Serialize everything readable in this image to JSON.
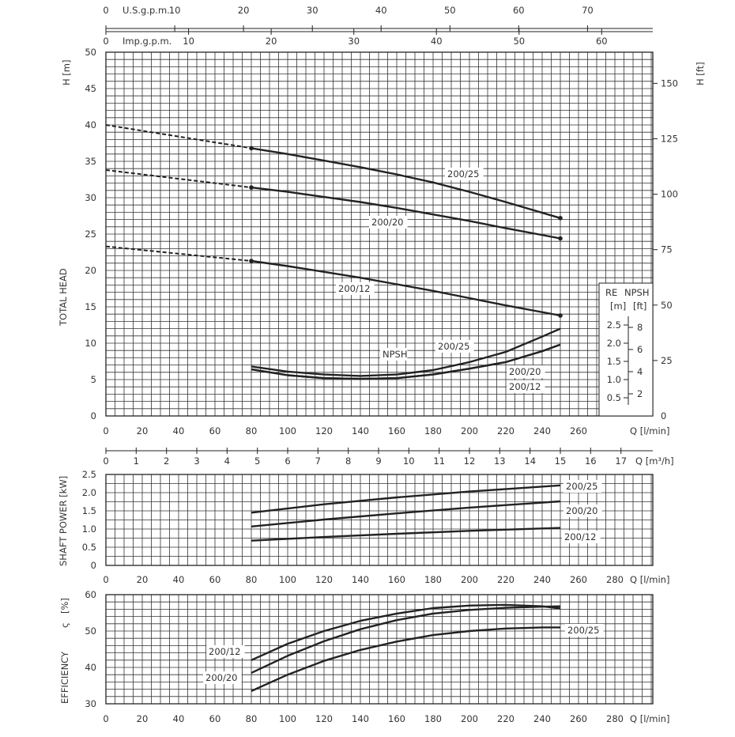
{
  "axes": {
    "usgpm": {
      "label": "U.S.g.p.m.",
      "ticks": [
        0,
        10,
        20,
        30,
        40,
        50,
        60,
        70
      ]
    },
    "impgpm": {
      "label": "Imp.g.p.m.",
      "ticks": [
        0,
        10,
        20,
        30,
        40,
        50,
        60
      ]
    },
    "flow_lmin": {
      "label": "Q  [l/min]",
      "ticks": [
        0,
        20,
        40,
        60,
        80,
        100,
        120,
        140,
        160,
        180,
        200,
        220,
        240,
        260
      ]
    },
    "flow_lmin_ext": {
      "label": "Q  [l/min]",
      "ticks": [
        0,
        20,
        40,
        60,
        80,
        100,
        120,
        140,
        160,
        180,
        200,
        220,
        240,
        260,
        280
      ]
    },
    "flow_m3h": {
      "label": "Q [m³/h]",
      "ticks": [
        0,
        1,
        2,
        3,
        4,
        5,
        6,
        7,
        8,
        9,
        10,
        11,
        12,
        13,
        14,
        15,
        16,
        17
      ]
    },
    "head_m": {
      "label": "H  [m]",
      "ticks": [
        0,
        5,
        10,
        15,
        20,
        25,
        30,
        35,
        40,
        45,
        50
      ]
    },
    "head_ft": {
      "label": "H  [ft]",
      "ticks": [
        0,
        25,
        50,
        75,
        100,
        125,
        150
      ]
    },
    "head_title": "TOTAL HEAD",
    "npsh_header": [
      "RE",
      "NPSH",
      "[m]",
      "[ft]"
    ],
    "npsh_m_ticks": [
      "0.5",
      "1.0",
      "1.5",
      "2.0",
      "2.5"
    ],
    "npsh_ft_ticks": [
      "2",
      "4",
      "6",
      "8"
    ],
    "power": {
      "label": "SHAFT POWER  [kW]",
      "ticks": [
        "0",
        "0.5",
        "1.0",
        "1.5",
        "2.0",
        "2.5"
      ]
    },
    "efficiency": {
      "label": "EFFICIENCY",
      "unit": "[%]",
      "ticks": [
        30,
        40,
        50,
        60
      ]
    }
  },
  "chart_data": [
    {
      "type": "line",
      "title": "TOTAL HEAD",
      "xlabel": "Q [l/min]",
      "ylabel": "H [m]",
      "xlim": [
        0,
        300
      ],
      "ylim": [
        0,
        50
      ],
      "grid": true,
      "series": [
        {
          "name": "200/25",
          "x": [
            0,
            80,
            100,
            120,
            140,
            160,
            180,
            200,
            220,
            250
          ],
          "y": [
            40,
            36.8,
            36.0,
            35.1,
            34.2,
            33.2,
            32.1,
            30.8,
            29.4,
            27.2
          ]
        },
        {
          "name": "200/20",
          "x": [
            0,
            80,
            100,
            120,
            140,
            160,
            180,
            200,
            220,
            250
          ],
          "y": [
            33.8,
            31.4,
            30.8,
            30.1,
            29.4,
            28.6,
            27.7,
            26.8,
            25.8,
            24.4
          ]
        },
        {
          "name": "200/12",
          "x": [
            0,
            80,
            100,
            120,
            140,
            160,
            180,
            200,
            220,
            250
          ],
          "y": [
            23.3,
            21.3,
            20.6,
            19.8,
            19.0,
            18.1,
            17.2,
            16.2,
            15.2,
            13.8
          ]
        }
      ],
      "npsh": [
        {
          "name": "200/25",
          "x": [
            80,
            100,
            120,
            140,
            160,
            180,
            200,
            220,
            240,
            250
          ],
          "y": [
            6.8,
            6.1,
            5.7,
            5.5,
            5.7,
            6.3,
            7.4,
            8.8,
            10.9,
            12.0
          ]
        },
        {
          "name": "200/20",
          "x": [
            80,
            100,
            120,
            140,
            160,
            180,
            200,
            220,
            240,
            250
          ],
          "y": [
            6.4,
            5.6,
            5.2,
            5.1,
            5.2,
            5.7,
            6.5,
            7.4,
            8.9,
            9.8
          ]
        },
        {
          "name": "200/12",
          "x": [
            80,
            100,
            120,
            140,
            160,
            180,
            200,
            220,
            240,
            250
          ],
          "y": [
            6.4,
            5.6,
            5.2,
            5.1,
            5.2,
            5.7,
            6.5,
            7.4,
            8.9,
            9.8
          ]
        }
      ],
      "npsh_label": "NPSH",
      "labels": {
        "h25": "200/25",
        "h20": "200/20",
        "h12": "200/12",
        "n25": "200/25",
        "n20": "200/20",
        "n12": "200/12"
      }
    },
    {
      "type": "line",
      "title": "SHAFT POWER",
      "xlabel": "Q [l/min]",
      "ylabel": "SHAFT POWER [kW]",
      "xlim": [
        0,
        300
      ],
      "ylim": [
        0,
        2.5
      ],
      "grid": true,
      "series": [
        {
          "name": "200/25",
          "x": [
            80,
            120,
            160,
            200,
            250
          ],
          "y": [
            1.45,
            1.68,
            1.87,
            2.03,
            2.2
          ]
        },
        {
          "name": "200/20",
          "x": [
            80,
            120,
            160,
            200,
            250
          ],
          "y": [
            1.07,
            1.26,
            1.43,
            1.59,
            1.76
          ]
        },
        {
          "name": "200/12",
          "x": [
            80,
            120,
            160,
            200,
            250
          ],
          "y": [
            0.68,
            0.78,
            0.87,
            0.95,
            1.03
          ]
        }
      ],
      "labels": {
        "p25": "200/25",
        "p20": "200/20",
        "p12": "200/12"
      }
    },
    {
      "type": "line",
      "title": "EFFICIENCY",
      "xlabel": "Q [l/min]",
      "ylabel": "EFFICIENCY [%]",
      "xlim": [
        0,
        300
      ],
      "ylim": [
        30,
        60
      ],
      "grid": true,
      "series": [
        {
          "name": "200/12",
          "x": [
            80,
            100,
            120,
            140,
            160,
            180,
            200,
            220,
            240,
            250
          ],
          "y": [
            42.0,
            46.5,
            50.0,
            52.8,
            54.8,
            56.3,
            57.0,
            57.2,
            56.8,
            56.2
          ]
        },
        {
          "name": "200/20",
          "x": [
            80,
            100,
            120,
            140,
            160,
            180,
            200,
            220,
            240,
            250
          ],
          "y": [
            38.5,
            43.2,
            47.2,
            50.5,
            53.0,
            54.8,
            55.8,
            56.4,
            56.7,
            56.8
          ]
        },
        {
          "name": "200/25",
          "x": [
            80,
            100,
            120,
            140,
            160,
            180,
            200,
            220,
            240,
            250
          ],
          "y": [
            33.5,
            38.0,
            41.8,
            44.8,
            47.1,
            48.9,
            50.0,
            50.7,
            51.0,
            51.0
          ]
        }
      ],
      "labels": {
        "e12": "200/12",
        "e20": "200/20",
        "e25": "200/25"
      }
    }
  ]
}
